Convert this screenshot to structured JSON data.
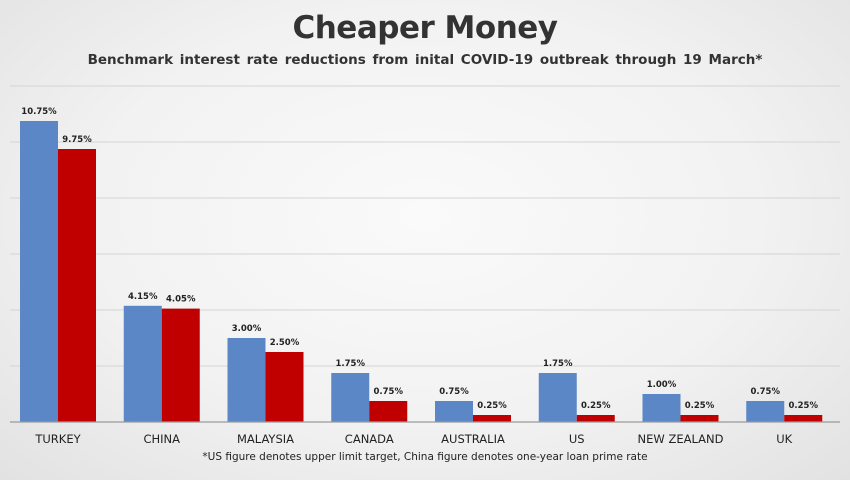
{
  "chart_data": {
    "type": "bar",
    "title": "Cheaper Money",
    "subtitle": "Benchmark interest rate reductions from inital COVID-19 outbreak through 19 March*",
    "footnote": "*US figure denotes upper limit target, China figure denotes one-year loan prime rate",
    "categories": [
      "TURKEY",
      "CHINA",
      "MALAYSIA",
      "CANADA",
      "AUSTRALIA",
      "US",
      "NEW ZEALAND",
      "UK"
    ],
    "series": [
      {
        "color": "#5b87c7",
        "values": [
          10.75,
          4.15,
          3.0,
          1.75,
          0.75,
          1.75,
          1.0,
          0.75
        ],
        "labels": [
          "10.75%",
          "4.15%",
          "3.00%",
          "1.75%",
          "0.75%",
          "1.75%",
          "1.00%",
          "0.75%"
        ]
      },
      {
        "color": "#c00000",
        "values": [
          9.75,
          4.05,
          2.5,
          0.75,
          0.25,
          0.25,
          0.25,
          0.25
        ],
        "labels": [
          "9.75%",
          "4.05%",
          "2.50%",
          "0.75%",
          "0.25%",
          "0.25%",
          "0.25%",
          "0.25%"
        ]
      }
    ],
    "ylim": [
      0,
      12
    ],
    "grid": true,
    "legend": "none"
  }
}
